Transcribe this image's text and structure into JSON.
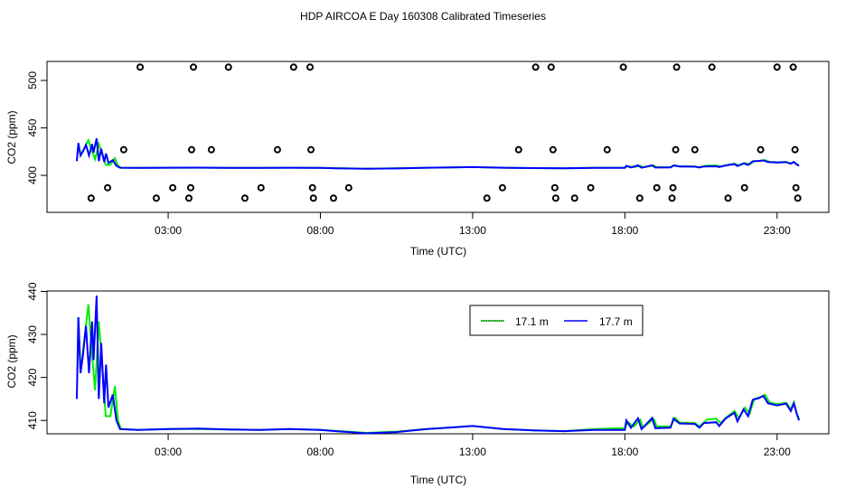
{
  "chart_data": [
    {
      "type": "scatter",
      "title": "HDP AIRCOA E  Day 160308  Calibrated Timeseries",
      "xlabel": "Time (UTC)",
      "ylabel": "CO2 (ppm)",
      "xlim": [
        -0.98,
        24.7
      ],
      "ylim": [
        361,
        520
      ],
      "x_ticks": [
        {
          "value": 3,
          "label": "03:00"
        },
        {
          "value": 8,
          "label": "08:00"
        },
        {
          "value": 13,
          "label": "13:00"
        },
        {
          "value": 18,
          "label": "18:00"
        },
        {
          "value": 23,
          "label": "23:00"
        }
      ],
      "y_ticks": [
        {
          "value": 400,
          "label": "400"
        },
        {
          "value": 450,
          "label": "450"
        },
        {
          "value": 500,
          "label": "500"
        }
      ],
      "points": [
        {
          "y": 514,
          "x": [
            2.08,
            3.83,
            4.98,
            7.12,
            7.66,
            15.07,
            15.58,
            17.95,
            19.7,
            20.86,
            23.0,
            23.53
          ]
        },
        {
          "y": 427,
          "x": [
            1.54,
            3.77,
            4.42,
            6.59,
            7.69,
            14.51,
            15.64,
            17.42,
            19.67,
            20.3,
            22.46,
            23.59
          ]
        },
        {
          "y": 387,
          "x": [
            1.01,
            3.15,
            3.74,
            6.05,
            7.74,
            8.93,
            13.98,
            15.7,
            16.88,
            19.05,
            19.58,
            21.93,
            23.62
          ]
        },
        {
          "y": 376,
          "x": [
            0.47,
            2.61,
            3.68,
            5.52,
            7.77,
            8.43,
            13.47,
            15.73,
            16.35,
            18.49,
            19.55,
            21.39,
            23.68
          ]
        }
      ],
      "grid": false
    },
    {
      "type": "line",
      "xlabel": "Time (UTC)",
      "ylabel": "CO2 (ppm)",
      "xlim": [
        -0.98,
        24.7
      ],
      "ylim": [
        406.9,
        440.1
      ],
      "x_ticks": [
        {
          "value": 3,
          "label": "03:00"
        },
        {
          "value": 8,
          "label": "08:00"
        },
        {
          "value": 13,
          "label": "13:00"
        },
        {
          "value": 18,
          "label": "18:00"
        },
        {
          "value": 23,
          "label": "23:00"
        }
      ],
      "y_ticks": [
        {
          "value": 410,
          "label": "410"
        },
        {
          "value": 420,
          "label": "420"
        },
        {
          "value": 430,
          "label": "430"
        },
        {
          "value": 440,
          "label": "440"
        }
      ],
      "legend": {
        "placement": "top-center",
        "entries": [
          {
            "label": "17.1 m",
            "color": "#00ee00"
          },
          {
            "label": "17.7 m",
            "color": "#0000ff"
          }
        ]
      },
      "series": [
        {
          "name": "17.1 m",
          "color": "#00ee00",
          "x": [
            0.05,
            0.12,
            0.25,
            0.38,
            0.48,
            0.6,
            0.72,
            0.82,
            0.95,
            1.1,
            1.25,
            1.35,
            1.45,
            2,
            3,
            4,
            5,
            6,
            7,
            8,
            8.5,
            9.5,
            10.5,
            11.5,
            13,
            14,
            15,
            16,
            17,
            18,
            18.1,
            18.3,
            18.5,
            18.6,
            18.95,
            19.05,
            19.5,
            19.65,
            19.8,
            20.3,
            20.45,
            20.7,
            21.0,
            21.15,
            21.35,
            21.6,
            21.75,
            21.95,
            22.1,
            22.25,
            22.45,
            22.6,
            22.75,
            23.0,
            23.3,
            23.45,
            23.55,
            23.65,
            23.72
          ],
          "y": [
            434,
            421,
            429,
            437,
            427,
            417,
            433,
            424,
            411,
            411,
            418,
            410,
            408,
            407.8,
            408,
            408,
            407.9,
            407.8,
            408,
            407.8,
            407.6,
            407.1,
            407.4,
            408,
            408.7,
            408,
            407.7,
            407.5,
            408,
            408.2,
            409.6,
            408.6,
            410.2,
            408.4,
            410.3,
            408.6,
            408.6,
            410.6,
            409.5,
            409.4,
            408.6,
            410.2,
            410.4,
            409.4,
            410.8,
            412.2,
            410.6,
            413,
            411.6,
            415,
            415.4,
            416,
            414.2,
            413.8,
            414.1,
            412.6,
            414.2,
            411.6,
            410.3
          ]
        },
        {
          "name": "17.7 m",
          "color": "#0000ff",
          "x": [
            0.0,
            0.05,
            0.12,
            0.2,
            0.3,
            0.4,
            0.5,
            0.55,
            0.65,
            0.72,
            0.8,
            0.9,
            0.96,
            1.04,
            1.18,
            1.3,
            1.42,
            2,
            3,
            4,
            5,
            6,
            7,
            8,
            8.5,
            9.5,
            10.5,
            11.5,
            13,
            14,
            15,
            16,
            17,
            18,
            18.05,
            18.2,
            18.43,
            18.55,
            18.9,
            19.0,
            19.5,
            19.6,
            19.8,
            20.3,
            20.45,
            20.6,
            21.0,
            21.1,
            21.3,
            21.6,
            21.7,
            21.9,
            22.05,
            22.2,
            22.4,
            22.55,
            22.7,
            23.0,
            23.3,
            23.45,
            23.55,
            23.65,
            23.72
          ],
          "y": [
            415,
            434,
            421,
            425,
            432,
            421,
            433,
            424,
            439,
            415,
            428,
            414,
            423,
            413,
            416,
            410,
            408,
            407.8,
            408,
            408.1,
            407.9,
            407.8,
            408,
            407.8,
            407.5,
            407,
            407.3,
            408,
            408.7,
            408,
            407.7,
            407.5,
            407.8,
            407.8,
            410,
            408.3,
            410.5,
            408,
            410.6,
            408.2,
            408.3,
            410.4,
            409.3,
            409.2,
            408.3,
            409.4,
            409.6,
            408.7,
            410.4,
            411.8,
            409.8,
            412.6,
            411,
            414.8,
            415.2,
            415.7,
            414,
            413.5,
            413.9,
            412.2,
            414,
            411.5,
            410
          ]
        }
      ],
      "grid": false
    }
  ]
}
